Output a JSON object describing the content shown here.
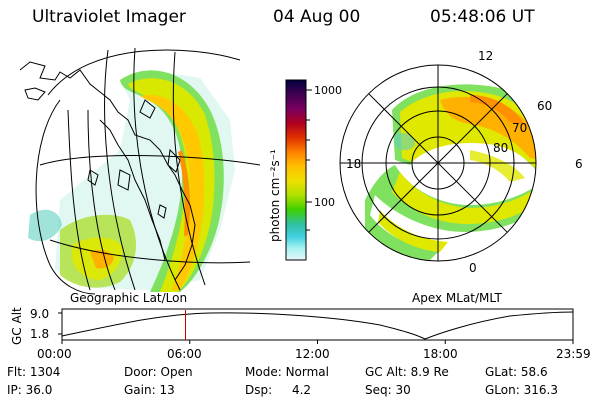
{
  "header": {
    "instrument": "Ultraviolet Imager",
    "date": "04 Aug 00",
    "time": "05:48:06 UT"
  },
  "left_panel": {
    "caption": "Geographic Lat/Lon"
  },
  "right_panel": {
    "caption": "Apex MLat/MLT",
    "mlt_labels": [
      "12",
      "18",
      "6",
      "0"
    ],
    "mlat_labels": [
      "60",
      "70",
      "80"
    ]
  },
  "colorbar": {
    "label": "photon cm⁻²s⁻¹",
    "ticks": [
      "1000",
      "100"
    ],
    "colors": [
      "#000040",
      "#3a0050",
      "#7a0060",
      "#b00020",
      "#e03000",
      "#ff8000",
      "#ffc000",
      "#f0e000",
      "#b0e000",
      "#40d000",
      "#30c0a0",
      "#40d0e0",
      "#a0f0f0",
      "#e8f8f8"
    ]
  },
  "timeline": {
    "axis_label": "GC Alt",
    "y_ticks": [
      "9.0",
      "1.8"
    ],
    "x_ticks": [
      "00:00",
      "06:00",
      "12:00",
      "18:00",
      "23:59"
    ],
    "current_time_fraction": 0.2417
  },
  "info": {
    "row1": [
      {
        "label": "Flt:",
        "value": "1304"
      },
      {
        "label": "Door:",
        "value": "Open"
      },
      {
        "label": "Mode:",
        "value": "Normal"
      },
      {
        "label": "GC Alt:",
        "value": "8.9 Re"
      },
      {
        "label": "GLat:",
        "value": "58.6"
      }
    ],
    "row2": [
      {
        "label": "IP:",
        "value": "36.0"
      },
      {
        "label": "Gain:",
        "value": "13"
      },
      {
        "label": "Dsp:",
        "value": "4.2"
      },
      {
        "label": "Seq:",
        "value": "30"
      },
      {
        "label": "GLon:",
        "value": "316.3"
      }
    ]
  }
}
